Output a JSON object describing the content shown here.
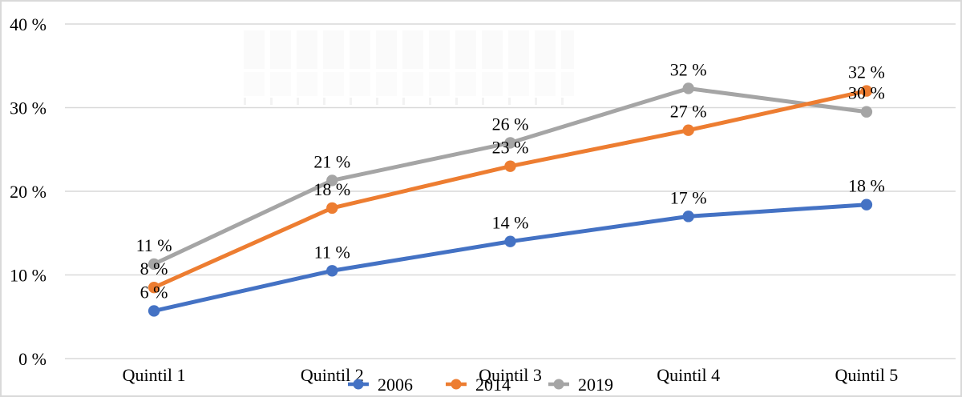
{
  "figure": {
    "background": "#FFFFFF",
    "border_color": "#D9D9D9"
  },
  "chart_data": {
    "type": "line",
    "categories": [
      "Quintil 1",
      "Quintil 2",
      "Quintil 3",
      "Quintil 4",
      "Quintil 5"
    ],
    "series": [
      {
        "name": "2006",
        "color": "#4472C4",
        "values": [
          6,
          11,
          14,
          17,
          18
        ],
        "labels": [
          "6 %",
          "11 %",
          "14 %",
          "17 %",
          "18 %"
        ],
        "plot_y": [
          5.7,
          10.5,
          14,
          17,
          18.4
        ]
      },
      {
        "name": "2014",
        "color": "#ED7D31",
        "values": [
          8,
          18,
          23,
          27,
          32
        ],
        "labels": [
          "8 %",
          "18 %",
          "23 %",
          "27 %",
          "32 %"
        ],
        "plot_y": [
          8.5,
          18,
          23,
          27.3,
          32
        ]
      },
      {
        "name": "2019",
        "color": "#A5A5A5",
        "values": [
          11,
          21,
          26,
          32,
          30
        ],
        "labels": [
          "11 %",
          "21 %",
          "26 %",
          "32 %",
          "30 %"
        ],
        "plot_y": [
          11.3,
          21.3,
          25.8,
          32.3,
          29.5
        ]
      }
    ],
    "y_axis": {
      "min": 0,
      "max": 40,
      "ticks": [
        0,
        10,
        20,
        30,
        40
      ],
      "tick_labels": [
        "0 %",
        "10 %",
        "20 %",
        "30 %",
        "40 %"
      ]
    },
    "grid": true,
    "grid_color": "#D9D9D9",
    "legend": {
      "position": "bottom-center",
      "entries": [
        "2006",
        "2014",
        "2019"
      ]
    }
  }
}
